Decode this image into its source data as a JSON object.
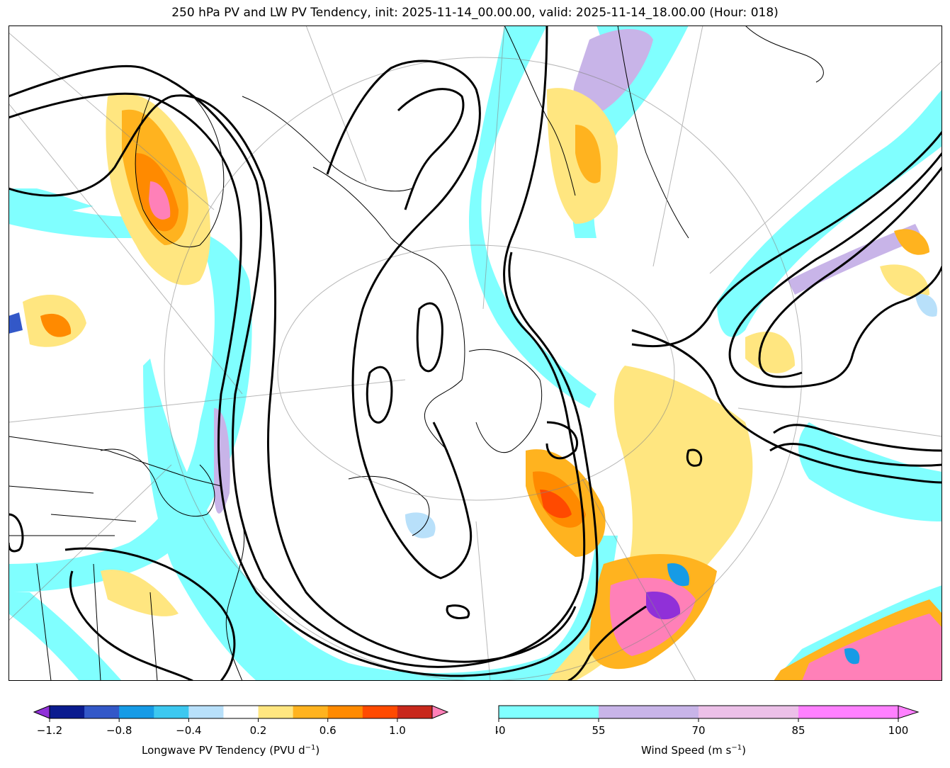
{
  "title": "250 hPa PV and LW PV Tendency, init: 2025-11-14_00.00.00, valid: 2025-11-14_18.00.00 (Hour: 018)",
  "colorbars": {
    "tendency": {
      "label": "Longwave PV Tendency (PVU d",
      "label_sup": "−1",
      "label_end": ")",
      "ticks": [
        "−1.2",
        "−0.8",
        "−0.4",
        "0.2",
        "0.6",
        "1.0"
      ],
      "bounds": [
        -1.2,
        -1.0,
        -0.8,
        -0.6,
        -0.4,
        -0.2,
        0.2,
        0.4,
        0.6,
        0.8,
        1.0,
        1.2
      ],
      "tick_values": [
        -1.2,
        -0.8,
        -0.4,
        0.2,
        0.6,
        1.0
      ],
      "colors": [
        "#0a1b8f",
        "#3358c8",
        "#169be6",
        "#3cc8f0",
        "#b8e0fa",
        "#ffffff",
        "#ffe680",
        "#ffb31f",
        "#ff8a00",
        "#ff4a00",
        "#c8281c"
      ],
      "under_color": "#9030d8",
      "over_color": "#ff80b8"
    },
    "wind": {
      "label": "Wind Speed (m s",
      "label_sup": "−1",
      "label_end": ")",
      "ticks": [
        "40",
        "55",
        "70",
        "85",
        "100"
      ],
      "bounds": [
        40,
        55,
        70,
        85,
        100
      ],
      "colors": [
        "#80ffff",
        "#c8b4e8",
        "#ecc0e8",
        "#ff80ff"
      ],
      "over_color": "#ff80ff"
    }
  }
}
